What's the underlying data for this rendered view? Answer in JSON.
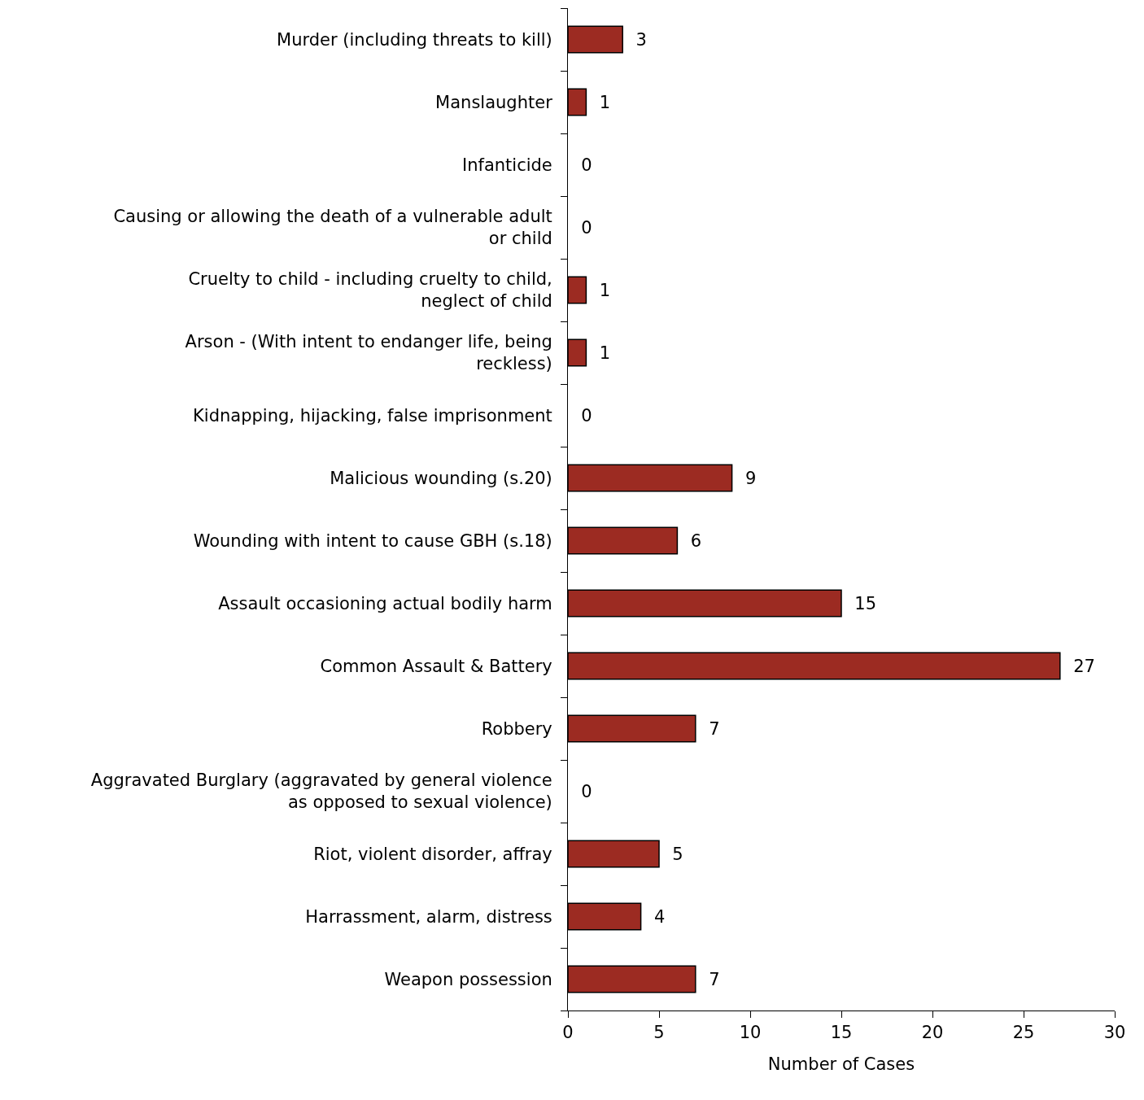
{
  "chart_data": {
    "type": "bar",
    "orientation": "horizontal",
    "xlabel": "Number of Cases",
    "categories": [
      "Murder (including threats to kill)",
      "Manslaughter",
      "Infanticide",
      "Causing or allowing the death of a vulnerable adult or child",
      "Cruelty to child - including cruelty to child, neglect of child",
      "Arson - (With intent to endanger life, being reckless)",
      "Kidnapping, hijacking, false imprisonment",
      "Malicious wounding (s.20)",
      "Wounding with intent to cause GBH (s.18)",
      "Assault occasioning actual bodily harm",
      "Common Assault & Battery",
      "Robbery",
      "Aggravated Burglary (aggravated by general violence as opposed to sexual violence)",
      "Riot, violent disorder, affray",
      "Harrassment, alarm, distress",
      "Weapon possession"
    ],
    "values": [
      3,
      1,
      0,
      0,
      1,
      1,
      0,
      9,
      6,
      15,
      27,
      7,
      0,
      5,
      4,
      7
    ],
    "color": "#9c2b22",
    "data_labels": true,
    "xlim": [
      0,
      30
    ],
    "xticks": [
      0,
      5,
      10,
      15,
      20,
      25,
      30
    ]
  }
}
